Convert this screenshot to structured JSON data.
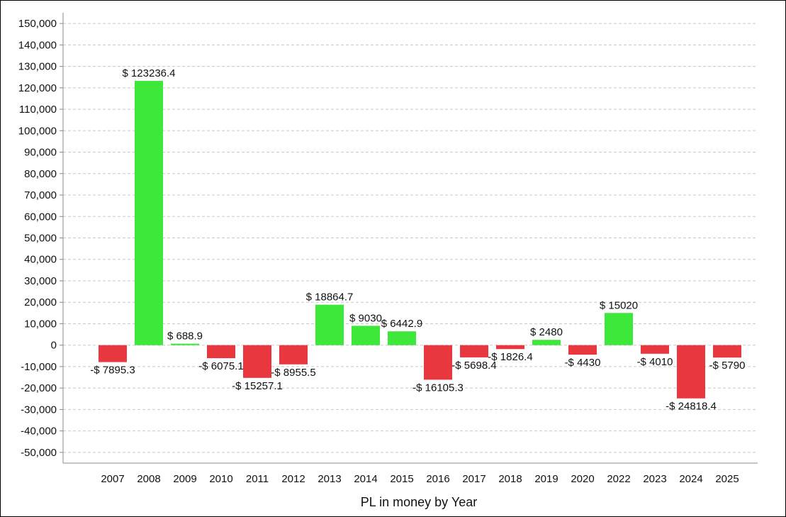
{
  "chart_data": {
    "type": "bar",
    "categories": [
      "2007",
      "2008",
      "2009",
      "2010",
      "2011",
      "2012",
      "2013",
      "2014",
      "2015",
      "2016",
      "2017",
      "2018",
      "2019",
      "2020",
      "2022",
      "2023",
      "2024",
      "2025"
    ],
    "values": [
      -7895.3,
      123236.4,
      688.9,
      -6075.1,
      -15257.1,
      -8955.5,
      18864.7,
      9030,
      6442.9,
      -16105.3,
      -5698.4,
      -1826.4,
      2480,
      -4430,
      15020,
      -4010,
      -24818.4,
      -5790
    ],
    "value_labels": [
      "-$ 7895.3",
      "$ 123236.4",
      "$ 688.9",
      "-$ 6075.1",
      "-$ 15257.1",
      "-$ 8955.5",
      "$ 18864.7",
      "$ 9030",
      "$ 6442.9",
      "-$ 16105.3",
      "-$ 5698.4",
      "-$ 1826.4",
      "$ 2480",
      "-$ 4430",
      "$ 15020",
      "-$ 4010",
      "-$ 24818.4",
      "-$ 5790"
    ],
    "title": "",
    "xlabel": "PL in money by Year",
    "ylabel": "",
    "ylim": [
      -55000,
      155000
    ],
    "yticks": [
      150000,
      140000,
      130000,
      120000,
      110000,
      100000,
      90000,
      80000,
      70000,
      60000,
      50000,
      40000,
      30000,
      20000,
      10000,
      0,
      -10000,
      -20000,
      -30000,
      -40000,
      -50000
    ],
    "ytick_labels": [
      "150,000",
      "140,000",
      "130,000",
      "120,000",
      "110,000",
      "100,000",
      "90,000",
      "80,000",
      "70,000",
      "60,000",
      "50,000",
      "40,000",
      "30,000",
      "20,000",
      "10,000",
      "0",
      "-10,000",
      "-20,000",
      "-30,000",
      "-40,000",
      "-50,000"
    ],
    "grid": true,
    "colors": {
      "positive": "#3ee83a",
      "negative": "#e8373f",
      "grid": "#c8c8c8",
      "axis": "#888888"
    }
  }
}
